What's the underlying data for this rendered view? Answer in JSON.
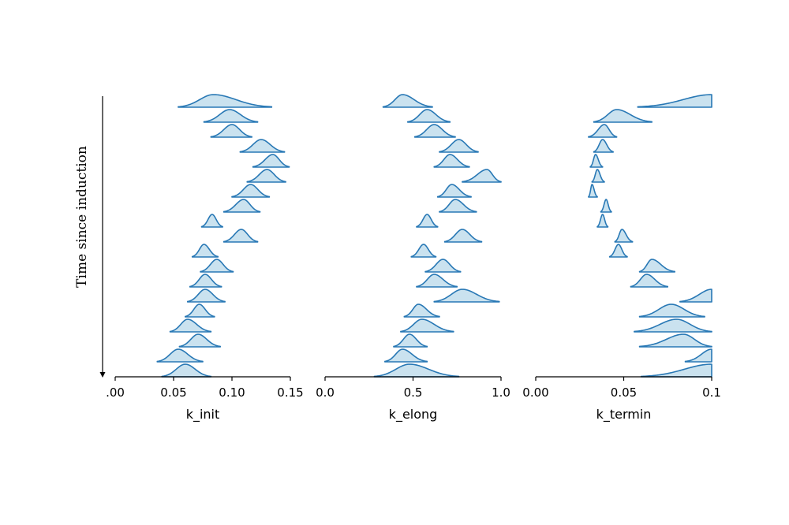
{
  "chart_data": {
    "type": "ridgeline",
    "ylabel": "Time since induction",
    "panels": [
      {
        "xlabel": "k_init",
        "xlim": [
          0.0,
          0.15
        ],
        "ticks": [
          0.0,
          0.05,
          0.1,
          0.15
        ],
        "tick_labels": [
          ".00",
          "0.05",
          "0.10",
          "0.15"
        ],
        "ridges": [
          {
            "mode": 0.084,
            "left": 0.054,
            "right": 0.134
          },
          {
            "mode": 0.098,
            "left": 0.076,
            "right": 0.122
          },
          {
            "mode": 0.1,
            "left": 0.082,
            "right": 0.117
          },
          {
            "mode": 0.125,
            "left": 0.107,
            "right": 0.145
          },
          {
            "mode": 0.135,
            "left": 0.118,
            "right": 0.149
          },
          {
            "mode": 0.13,
            "left": 0.113,
            "right": 0.146
          },
          {
            "mode": 0.116,
            "left": 0.1,
            "right": 0.132
          },
          {
            "mode": 0.11,
            "left": 0.093,
            "right": 0.124
          },
          {
            "mode": 0.083,
            "left": 0.074,
            "right": 0.092
          },
          {
            "mode": 0.108,
            "left": 0.093,
            "right": 0.122
          },
          {
            "mode": 0.076,
            "left": 0.066,
            "right": 0.088
          },
          {
            "mode": 0.087,
            "left": 0.073,
            "right": 0.101
          },
          {
            "mode": 0.077,
            "left": 0.064,
            "right": 0.091
          },
          {
            "mode": 0.077,
            "left": 0.062,
            "right": 0.094
          },
          {
            "mode": 0.072,
            "left": 0.06,
            "right": 0.085
          },
          {
            "mode": 0.062,
            "left": 0.047,
            "right": 0.082
          },
          {
            "mode": 0.071,
            "left": 0.055,
            "right": 0.09
          },
          {
            "mode": 0.054,
            "left": 0.036,
            "right": 0.075
          },
          {
            "mode": 0.06,
            "left": 0.04,
            "right": 0.082
          }
        ]
      },
      {
        "xlabel": "k_elong",
        "xlim": [
          0.0,
          1.0
        ],
        "ticks": [
          0.0,
          0.5,
          1.0
        ],
        "tick_labels": [
          "0.0",
          "0.5",
          "1.0"
        ],
        "ridges": [
          {
            "mode": 0.44,
            "left": 0.33,
            "right": 0.61
          },
          {
            "mode": 0.58,
            "left": 0.47,
            "right": 0.71
          },
          {
            "mode": 0.62,
            "left": 0.51,
            "right": 0.74
          },
          {
            "mode": 0.76,
            "left": 0.65,
            "right": 0.87
          },
          {
            "mode": 0.71,
            "left": 0.62,
            "right": 0.82
          },
          {
            "mode": 0.92,
            "left": 0.78,
            "right": 1.0
          },
          {
            "mode": 0.72,
            "left": 0.64,
            "right": 0.83
          },
          {
            "mode": 0.74,
            "left": 0.65,
            "right": 0.86
          },
          {
            "mode": 0.58,
            "left": 0.52,
            "right": 0.64
          },
          {
            "mode": 0.78,
            "left": 0.68,
            "right": 0.89
          },
          {
            "mode": 0.56,
            "left": 0.49,
            "right": 0.63
          },
          {
            "mode": 0.67,
            "left": 0.57,
            "right": 0.77
          },
          {
            "mode": 0.62,
            "left": 0.52,
            "right": 0.75
          },
          {
            "mode": 0.78,
            "left": 0.62,
            "right": 0.99
          },
          {
            "mode": 0.53,
            "left": 0.45,
            "right": 0.65
          },
          {
            "mode": 0.55,
            "left": 0.43,
            "right": 0.73
          },
          {
            "mode": 0.48,
            "left": 0.39,
            "right": 0.58
          },
          {
            "mode": 0.44,
            "left": 0.34,
            "right": 0.58
          },
          {
            "mode": 0.48,
            "left": 0.28,
            "right": 0.76
          }
        ]
      },
      {
        "xlabel": "k_termin",
        "xlim": [
          0.0,
          0.1
        ],
        "ticks": [
          0.0,
          0.05,
          0.1
        ],
        "tick_labels": [
          "0.00",
          "0.05",
          "0.1"
        ],
        "ridges": [
          {
            "mode": 0.1,
            "left": 0.058,
            "right": 0.1
          },
          {
            "mode": 0.046,
            "left": 0.033,
            "right": 0.066
          },
          {
            "mode": 0.039,
            "left": 0.03,
            "right": 0.046
          },
          {
            "mode": 0.038,
            "left": 0.033,
            "right": 0.044
          },
          {
            "mode": 0.034,
            "left": 0.031,
            "right": 0.038
          },
          {
            "mode": 0.035,
            "left": 0.032,
            "right": 0.039
          },
          {
            "mode": 0.032,
            "left": 0.03,
            "right": 0.035
          },
          {
            "mode": 0.04,
            "left": 0.037,
            "right": 0.043
          },
          {
            "mode": 0.038,
            "left": 0.035,
            "right": 0.041
          },
          {
            "mode": 0.049,
            "left": 0.045,
            "right": 0.055
          },
          {
            "mode": 0.047,
            "left": 0.042,
            "right": 0.052
          },
          {
            "mode": 0.066,
            "left": 0.059,
            "right": 0.079
          },
          {
            "mode": 0.063,
            "left": 0.054,
            "right": 0.075
          },
          {
            "mode": 0.1,
            "left": 0.082,
            "right": 0.1
          },
          {
            "mode": 0.077,
            "left": 0.059,
            "right": 0.096
          },
          {
            "mode": 0.08,
            "left": 0.056,
            "right": 0.1
          },
          {
            "mode": 0.084,
            "left": 0.059,
            "right": 0.1
          },
          {
            "mode": 0.1,
            "left": 0.085,
            "right": 0.1
          },
          {
            "mode": 0.1,
            "left": 0.06,
            "right": 0.1
          }
        ]
      }
    ]
  }
}
